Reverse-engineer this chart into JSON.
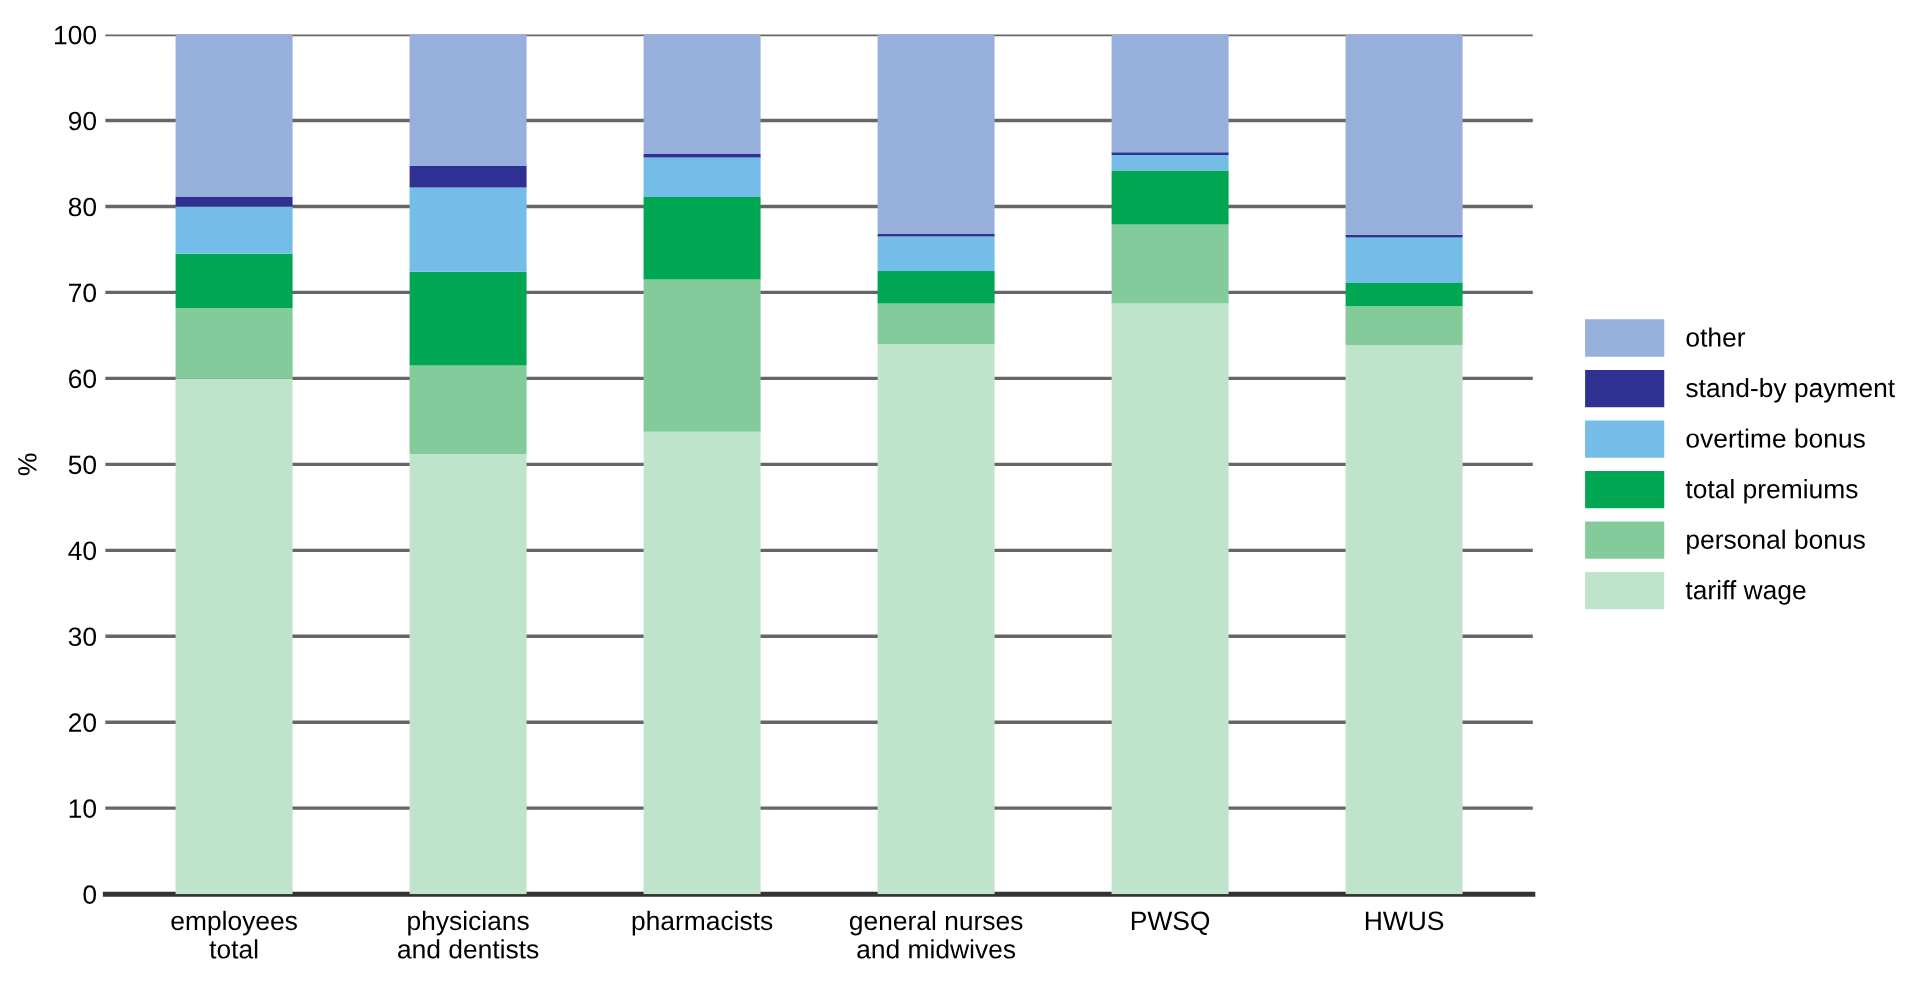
{
  "chart_data": {
    "type": "bar",
    "stacked": true,
    "ylabel": "%",
    "categories": [
      "employees\ntotal",
      "physicians\nand dentists",
      "pharmacists",
      "general nurses\nand midwives",
      "PWSQ",
      "HWUS"
    ],
    "series": [
      {
        "name": "tariff wage",
        "color": "#c0e3cb",
        "values": [
          60,
          51.2,
          53.8,
          64,
          68.7,
          63.9
        ]
      },
      {
        "name": "personal bonus",
        "color": "#84cb9c",
        "values": [
          8.2,
          10.3,
          17.7,
          4.7,
          9.2,
          4.5
        ]
      },
      {
        "name": "total premiums",
        "color": "#00a651",
        "values": [
          6.3,
          10.9,
          9.6,
          3.8,
          6.3,
          2.7
        ]
      },
      {
        "name": "overtime bonus",
        "color": "#74bde8",
        "values": [
          5.5,
          9.8,
          4.6,
          4.0,
          1.8,
          5.3
        ]
      },
      {
        "name": "stand-by payment",
        "color": "#2e3192",
        "values": [
          1.1,
          2.5,
          0.4,
          0.3,
          0.3,
          0.3
        ]
      },
      {
        "name": "other",
        "color": "#97afdb",
        "values": [
          18.9,
          15.3,
          13.9,
          23.2,
          13.7,
          23.3
        ]
      }
    ],
    "ylim": [
      0,
      100
    ],
    "yticks": [
      0,
      10,
      20,
      30,
      40,
      50,
      60,
      70,
      80,
      90,
      100
    ],
    "grid": "y",
    "legend": "right"
  }
}
